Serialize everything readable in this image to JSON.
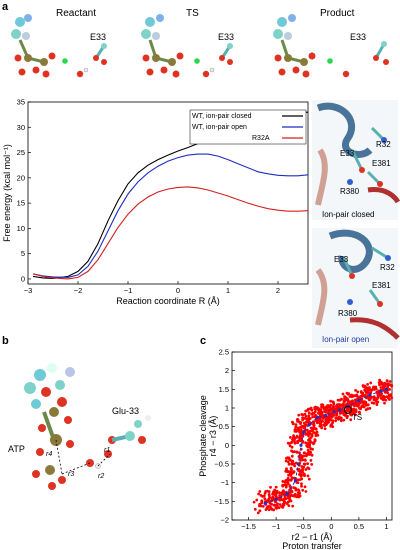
{
  "panel_a": {
    "label": "a",
    "snapshots": [
      {
        "title": "Reactant",
        "residue": "E33"
      },
      {
        "title": "TS",
        "residue": "E33"
      },
      {
        "title": "Product",
        "residue": "E33"
      }
    ],
    "ion_pair_closed": {
      "caption": "Ion-pair closed",
      "residues": [
        "R32",
        "E33",
        "E381",
        "R380"
      ]
    },
    "ion_pair_open": {
      "caption": "Ion-pair open",
      "caption_color": "#1f3a9a",
      "residues": [
        "E33",
        "R32",
        "E381",
        "R380"
      ]
    }
  },
  "panel_b": {
    "label": "b",
    "atp_label": "ATP",
    "glu_label": "Glu-33",
    "distance_labels": [
      "r4",
      "r3",
      "r2",
      "r1"
    ]
  },
  "panel_c": {
    "label": "c",
    "ts_label": "TS"
  },
  "chart_data": [
    {
      "type": "line",
      "panel": "a",
      "xlabel": "Reaction coordinate R (Å)",
      "ylabel": "Free energy (kcal mol⁻¹)",
      "xlim": [
        -3,
        2.6
      ],
      "ylim": [
        -1,
        35
      ],
      "xticks": [
        -3,
        -2,
        -1,
        0,
        1,
        2
      ],
      "yticks": [
        0,
        5,
        10,
        15,
        20,
        25,
        30,
        35
      ],
      "legend_position": "top-right",
      "series": [
        {
          "name": "WT, ion-pair closed",
          "color": "#000000",
          "x": [
            -2.9,
            -2.7,
            -2.5,
            -2.2,
            -2.0,
            -1.8,
            -1.6,
            -1.4,
            -1.2,
            -1.0,
            -0.8,
            -0.6,
            -0.4,
            -0.2,
            0.0,
            0.2,
            0.4,
            0.6,
            0.8,
            1.0,
            1.2,
            1.4,
            1.6,
            1.8,
            2.0,
            2.2,
            2.4,
            2.6
          ],
          "y": [
            0.5,
            0.2,
            0.1,
            0.5,
            1.5,
            3.5,
            7.0,
            11.5,
            15.5,
            18.8,
            21.0,
            22.5,
            23.6,
            24.5,
            25.3,
            26.0,
            26.8,
            27.6,
            28.4,
            29.1,
            29.7,
            30.3,
            31.0,
            31.5,
            31.9,
            32.3,
            32.7,
            33.0
          ]
        },
        {
          "name": "WT, ion-pair open",
          "color": "#1f2fbf",
          "x": [
            -2.9,
            -2.7,
            -2.5,
            -2.2,
            -2.0,
            -1.8,
            -1.6,
            -1.4,
            -1.2,
            -1.0,
            -0.8,
            -0.6,
            -0.4,
            -0.2,
            0.0,
            0.2,
            0.4,
            0.6,
            0.8,
            1.0,
            1.2,
            1.4,
            1.6,
            1.8,
            2.0,
            2.2,
            2.4,
            2.6
          ],
          "y": [
            1.0,
            0.6,
            0.4,
            0.3,
            0.8,
            2.5,
            5.5,
            9.5,
            13.5,
            16.8,
            19.2,
            21.0,
            22.3,
            23.3,
            24.0,
            24.5,
            24.7,
            24.7,
            24.3,
            23.6,
            22.8,
            22.0,
            21.2,
            20.8,
            20.5,
            20.4,
            20.4,
            20.6
          ]
        },
        {
          "name": "R32A",
          "color": "#d42020",
          "x": [
            -2.9,
            -2.7,
            -2.5,
            -2.2,
            -2.0,
            -1.8,
            -1.6,
            -1.4,
            -1.2,
            -1.0,
            -0.8,
            -0.6,
            -0.4,
            -0.2,
            0.0,
            0.2,
            0.4,
            0.6,
            0.8,
            1.0,
            1.2,
            1.4,
            1.6,
            1.8,
            2.0,
            2.2,
            2.4,
            2.6
          ],
          "y": [
            1.0,
            0.5,
            0.2,
            0.0,
            0.3,
            1.5,
            3.8,
            7.0,
            10.2,
            12.8,
            14.8,
            16.2,
            17.2,
            17.8,
            18.1,
            18.2,
            18.0,
            17.6,
            17.0,
            16.4,
            15.7,
            15.0,
            14.4,
            13.9,
            13.6,
            13.4,
            13.4,
            13.5
          ]
        }
      ]
    },
    {
      "type": "scatter",
      "panel": "c",
      "xlabel": "r2 − r1 (Å)",
      "xlabel2": "Proton transfer",
      "ylabel": "r4 − r3 (Å)",
      "ylabel2": "Phosphate cleavage",
      "xlim": [
        -1.8,
        1.1
      ],
      "ylim": [
        -2,
        2.5
      ],
      "xticks": [
        -1.5,
        -1,
        -0.5,
        0,
        0.5,
        1
      ],
      "yticks": [
        -2,
        -1.5,
        -1,
        -0.5,
        0,
        0.5,
        1,
        1.5,
        2,
        2.5
      ],
      "ts_point": [
        0.3,
        0.95
      ],
      "series": [
        {
          "name": "",
          "color": "#ff0000",
          "x": [
            -1.2,
            -1.0,
            -0.8,
            -0.65,
            -0.6,
            -0.55,
            -0.5,
            -0.4,
            -0.25,
            -0.1,
            0.05,
            0.15,
            0.3,
            0.5,
            0.7,
            0.9,
            1.0
          ],
          "y": [
            -1.55,
            -1.45,
            -1.3,
            -0.95,
            -0.5,
            0.0,
            0.35,
            0.55,
            0.75,
            0.8,
            0.9,
            0.95,
            1.05,
            1.2,
            1.35,
            1.45,
            1.5
          ]
        },
        {
          "name": "",
          "color": "#2030c0",
          "x": [
            -1.2,
            -1.0,
            -0.8,
            -0.65,
            -0.6,
            -0.55,
            -0.5,
            -0.4,
            -0.25,
            -0.1,
            0.05,
            0.15,
            0.3,
            0.5,
            0.7,
            0.9,
            1.0
          ],
          "y": [
            -1.55,
            -1.45,
            -1.3,
            -0.95,
            -0.5,
            0.0,
            0.35,
            0.55,
            0.75,
            0.8,
            0.9,
            0.95,
            1.05,
            1.2,
            1.35,
            1.45,
            1.5
          ]
        }
      ]
    }
  ]
}
